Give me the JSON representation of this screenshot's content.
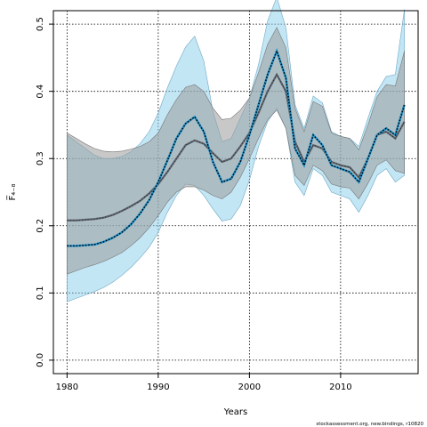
{
  "chart_data": {
    "type": "area",
    "xlabel": "Years",
    "ylabel": "F̅₄₋₈",
    "credit": "stockassessment.org, new.bindings, r10820",
    "xlim": [
      1978.5,
      2018.5
    ],
    "ylim": [
      -0.02,
      0.52
    ],
    "xticks": [
      1980,
      1990,
      2000,
      2010
    ],
    "yticks": [
      0.0,
      0.1,
      0.2,
      0.3,
      0.4,
      0.5
    ],
    "ytick_labels": [
      "0.0",
      "0.1",
      "0.2",
      "0.3",
      "0.4",
      "0.5"
    ],
    "grid": true,
    "x": [
      1980,
      1981,
      1982,
      1983,
      1984,
      1985,
      1986,
      1987,
      1988,
      1989,
      1990,
      1991,
      1992,
      1993,
      1994,
      1995,
      1996,
      1997,
      1998,
      1999,
      2000,
      2001,
      2002,
      2003,
      2004,
      2005,
      2006,
      2007,
      2008,
      2009,
      2010,
      2011,
      2012,
      2013,
      2014,
      2015,
      2016,
      2017
    ],
    "series": [
      {
        "style": "dotted-black-with-blue-band",
        "colors": {
          "band": "#87ceeb",
          "line": "#000000"
        },
        "estimate": [
          0.17,
          0.17,
          0.171,
          0.172,
          0.176,
          0.182,
          0.19,
          0.202,
          0.218,
          0.238,
          0.265,
          0.297,
          0.33,
          0.352,
          0.362,
          0.34,
          0.295,
          0.265,
          0.27,
          0.295,
          0.335,
          0.38,
          0.425,
          0.46,
          0.42,
          0.315,
          0.29,
          0.335,
          0.32,
          0.29,
          0.285,
          0.28,
          0.265,
          0.3,
          0.335,
          0.345,
          0.335,
          0.38
        ],
        "lower": [
          0.087,
          0.092,
          0.097,
          0.102,
          0.108,
          0.116,
          0.126,
          0.138,
          0.152,
          0.168,
          0.19,
          0.22,
          0.245,
          0.262,
          0.26,
          0.245,
          0.225,
          0.207,
          0.21,
          0.23,
          0.268,
          0.318,
          0.355,
          0.375,
          0.345,
          0.265,
          0.245,
          0.285,
          0.275,
          0.25,
          0.245,
          0.24,
          0.22,
          0.245,
          0.275,
          0.285,
          0.265,
          0.275
        ],
        "upper": [
          0.335,
          0.325,
          0.315,
          0.305,
          0.3,
          0.3,
          0.303,
          0.31,
          0.322,
          0.34,
          0.368,
          0.405,
          0.438,
          0.466,
          0.482,
          0.445,
          0.37,
          0.325,
          0.33,
          0.36,
          0.39,
          0.44,
          0.505,
          0.54,
          0.495,
          0.38,
          0.345,
          0.393,
          0.383,
          0.34,
          0.333,
          0.33,
          0.318,
          0.36,
          0.4,
          0.422,
          0.425,
          0.522
        ]
      },
      {
        "style": "grey-line-with-grey-band",
        "colors": {
          "band": "#9a9a9a",
          "line": "#5f6670"
        },
        "estimate": [
          0.208,
          0.208,
          0.209,
          0.21,
          0.212,
          0.216,
          0.222,
          0.229,
          0.237,
          0.248,
          0.262,
          0.28,
          0.3,
          0.32,
          0.327,
          0.322,
          0.308,
          0.295,
          0.3,
          0.318,
          0.338,
          0.368,
          0.4,
          0.425,
          0.4,
          0.325,
          0.295,
          0.32,
          0.315,
          0.295,
          0.29,
          0.287,
          0.272,
          0.3,
          0.335,
          0.34,
          0.33,
          0.355
        ],
        "lower": [
          0.128,
          0.133,
          0.138,
          0.142,
          0.147,
          0.153,
          0.16,
          0.17,
          0.182,
          0.197,
          0.215,
          0.235,
          0.25,
          0.258,
          0.258,
          0.253,
          0.245,
          0.24,
          0.25,
          0.272,
          0.3,
          0.33,
          0.358,
          0.372,
          0.345,
          0.275,
          0.26,
          0.29,
          0.282,
          0.262,
          0.258,
          0.256,
          0.24,
          0.263,
          0.29,
          0.298,
          0.282,
          0.278
        ],
        "upper": [
          0.338,
          0.33,
          0.322,
          0.315,
          0.311,
          0.31,
          0.311,
          0.314,
          0.318,
          0.325,
          0.338,
          0.365,
          0.388,
          0.406,
          0.41,
          0.4,
          0.375,
          0.358,
          0.36,
          0.372,
          0.39,
          0.428,
          0.47,
          0.495,
          0.465,
          0.375,
          0.34,
          0.385,
          0.378,
          0.338,
          0.333,
          0.33,
          0.313,
          0.35,
          0.392,
          0.41,
          0.408,
          0.46
        ]
      }
    ]
  }
}
